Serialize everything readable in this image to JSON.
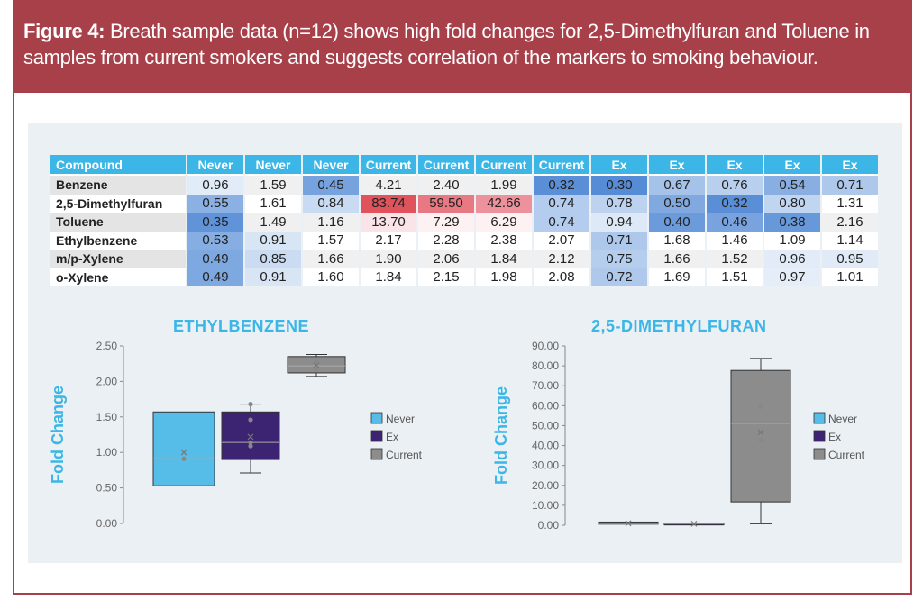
{
  "figure": {
    "label": "Figure 4:",
    "caption": "Breath sample data (n=12) shows high fold changes for 2,5-Dimethylfuran and Toluene in samples from current smokers and suggests correlation of the markers to smoking behaviour."
  },
  "colors": {
    "header_bg": "#a8404a",
    "accent": "#3bb6e6",
    "never": "#56bde9",
    "ex": "#3c2472",
    "current": "#8c8c8c"
  },
  "table": {
    "header_compound": "Compound",
    "columns": [
      "Never",
      "Never",
      "Never",
      "Current",
      "Current",
      "Current",
      "Current",
      "Ex",
      "Ex",
      "Ex",
      "Ex",
      "Ex"
    ],
    "rows": [
      {
        "name": "Benzene",
        "values": [
          "0.96",
          "1.59",
          "0.45",
          "4.21",
          "2.40",
          "1.99",
          "0.32",
          "0.30",
          "0.67",
          "0.76",
          "0.54",
          "0.71"
        ]
      },
      {
        "name": "2,5-Dimethylfuran",
        "values": [
          "0.55",
          "1.61",
          "0.84",
          "83.74",
          "59.50",
          "42.66",
          "0.74",
          "0.78",
          "0.50",
          "0.32",
          "0.80",
          "1.31"
        ]
      },
      {
        "name": "Toluene",
        "values": [
          "0.35",
          "1.49",
          "1.16",
          "13.70",
          "7.29",
          "6.29",
          "0.74",
          "0.94",
          "0.40",
          "0.46",
          "0.38",
          "2.16"
        ]
      },
      {
        "name": "Ethylbenzene",
        "values": [
          "0.53",
          "0.91",
          "1.57",
          "2.17",
          "2.28",
          "2.38",
          "2.07",
          "0.71",
          "1.68",
          "1.46",
          "1.09",
          "1.14"
        ]
      },
      {
        "name": "m/p-Xylene",
        "values": [
          "0.49",
          "0.85",
          "1.66",
          "1.90",
          "2.06",
          "1.84",
          "2.12",
          "0.75",
          "1.66",
          "1.52",
          "0.96",
          "0.95"
        ]
      },
      {
        "name": "o-Xylene",
        "values": [
          "0.49",
          "0.91",
          "1.60",
          "1.84",
          "2.15",
          "1.98",
          "2.08",
          "0.72",
          "1.69",
          "1.51",
          "0.97",
          "1.01"
        ]
      }
    ]
  },
  "chart_data": [
    {
      "type": "boxplot",
      "title": "ETHYLBENZENE",
      "ylabel": "Fold Change",
      "ylim": [
        0,
        2.5
      ],
      "yticks": [
        "0.00",
        "0.50",
        "1.00",
        "1.50",
        "2.00",
        "2.50"
      ],
      "legend": [
        "Never",
        "Ex",
        "Current"
      ],
      "series": [
        {
          "name": "Never",
          "min": 0.53,
          "q1": 0.53,
          "median": 0.91,
          "q3": 1.57,
          "max": 1.57,
          "mean": 1.0,
          "points": [
            0.91
          ]
        },
        {
          "name": "Ex",
          "min": 0.71,
          "q1": 0.9,
          "median": 1.14,
          "q3": 1.57,
          "max": 1.68,
          "mean": 1.22,
          "points": [
            1.09,
            1.14,
            1.46,
            1.68
          ]
        },
        {
          "name": "Current",
          "min": 2.07,
          "q1": 2.12,
          "median": 2.22,
          "q3": 2.35,
          "max": 2.38,
          "mean": 2.23,
          "points": [
            2.17,
            2.28
          ]
        }
      ]
    },
    {
      "type": "boxplot",
      "title": "2,5-DIMETHYLFURAN",
      "ylabel": "Fold Change",
      "ylim": [
        0,
        90
      ],
      "yticks": [
        "0.00",
        "10.00",
        "20.00",
        "30.00",
        "40.00",
        "50.00",
        "60.00",
        "70.00",
        "80.00",
        "90.00"
      ],
      "legend": [
        "Never",
        "Ex",
        "Current"
      ],
      "series": [
        {
          "name": "Never",
          "min": 0.55,
          "q1": 0.55,
          "median": 0.84,
          "q3": 1.61,
          "max": 1.61,
          "mean": 1.0,
          "points": []
        },
        {
          "name": "Ex",
          "min": 0.32,
          "q1": 0.41,
          "median": 0.78,
          "q3": 1.05,
          "max": 1.31,
          "mean": 0.74,
          "points": []
        },
        {
          "name": "Current",
          "min": 0.74,
          "q1": 11.7,
          "median": 51.08,
          "q3": 77.7,
          "max": 83.74,
          "mean": 46.66,
          "points": [
            59.5,
            42.66
          ]
        }
      ]
    }
  ]
}
